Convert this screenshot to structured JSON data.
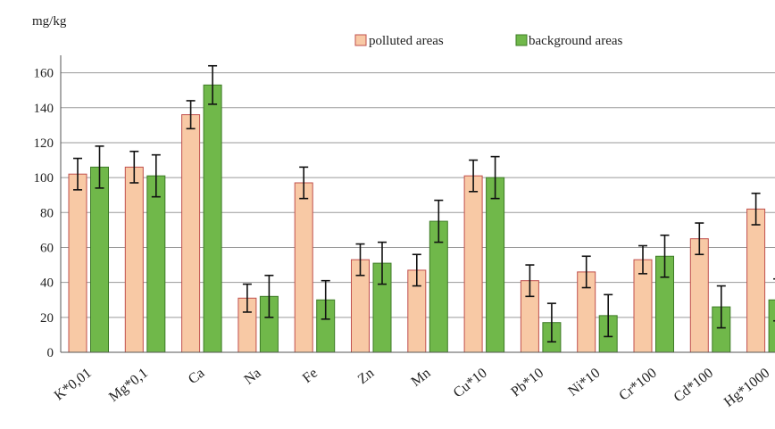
{
  "chart_data": {
    "type": "bar",
    "ylabel": "mg/kg",
    "ylim": [
      0,
      170
    ],
    "yticks": [
      0,
      20,
      40,
      60,
      80,
      100,
      120,
      140,
      160
    ],
    "grid": true,
    "legend_position": "top-right",
    "categories": [
      "K*0,01",
      "Mg*0,1",
      "Ca",
      "Na",
      "Fe",
      "Zn",
      "Mn",
      "Cu*10",
      "Pb*10",
      "Ni*10",
      "Cr*100",
      "Cd*100",
      "Hg*1000"
    ],
    "series": [
      {
        "name": "polluted areas",
        "color": "#f8c9a5",
        "edge_color": "#c0504d",
        "values": [
          102,
          106,
          136,
          31,
          97,
          53,
          47,
          101,
          41,
          46,
          53,
          65,
          82
        ],
        "errors": [
          9,
          9,
          8,
          8,
          9,
          9,
          9,
          9,
          9,
          9,
          8,
          9,
          9
        ]
      },
      {
        "name": "background areas",
        "color": "#70b84a",
        "edge_color": "#3e7b27",
        "values": [
          106,
          101,
          153,
          32,
          30,
          51,
          75,
          100,
          17,
          21,
          55,
          26,
          30
        ],
        "errors": [
          12,
          12,
          11,
          12,
          11,
          12,
          12,
          12,
          11,
          12,
          12,
          12,
          12
        ]
      }
    ]
  }
}
